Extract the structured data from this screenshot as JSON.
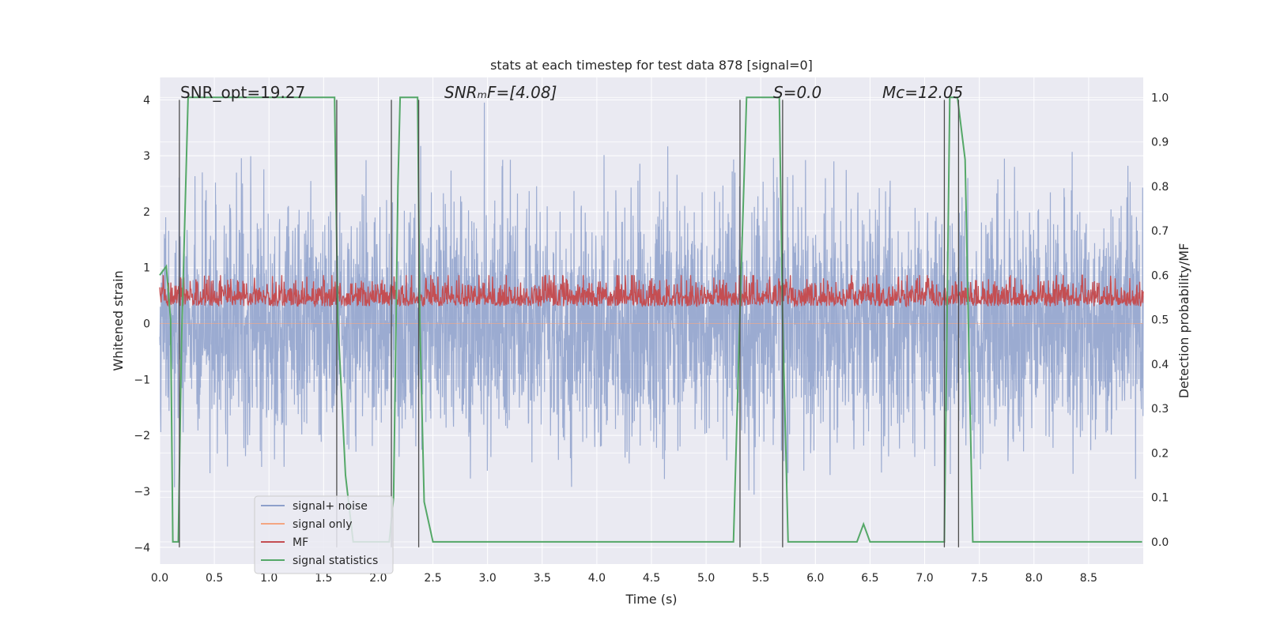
{
  "chart_data": {
    "type": "line",
    "title": "stats at each timestep for test data 878 [signal=0]",
    "xlabel": "Time (s)",
    "ylabel_left": "Whitened strain",
    "ylabel_right": "Detection probability/MF",
    "xlim": [
      0.0,
      9.0
    ],
    "ylim_left": [
      -4.3,
      4.4
    ],
    "ylim_right": [
      -0.05,
      1.045
    ],
    "x_ticks": [
      "0.0",
      "0.5",
      "1.0",
      "1.5",
      "2.0",
      "2.5",
      "3.0",
      "3.5",
      "4.0",
      "4.5",
      "5.0",
      "5.5",
      "6.0",
      "6.5",
      "7.0",
      "7.5",
      "8.0",
      "8.5"
    ],
    "y_ticks_left": [
      "4",
      "3",
      "2",
      "1",
      "0",
      "−1",
      "−2",
      "−3",
      "−4"
    ],
    "y_ticks_right": [
      "1.0",
      "0.9",
      "0.8",
      "0.7",
      "0.6",
      "0.5",
      "0.4",
      "0.3",
      "0.2",
      "0.1",
      "0.0"
    ],
    "grid": true,
    "legend_position": "lower-left",
    "annotations": {
      "snr_opt": "SNR_opt=19.27",
      "snr_mf": "SNRₘF=[4.08]",
      "s": "S=0.0",
      "mc": "Mᴄ=12.05"
    },
    "series": [
      {
        "name": "signal+ noise",
        "color": "#8da0cb",
        "note": "dense noise trace, amplitude mostly within -2.5..2.5, peaks near ±4"
      },
      {
        "name": "signal only",
        "color": "#f4a582",
        "values_desc": "zero throughout (no signal)"
      },
      {
        "name": "MF",
        "color": "#c44e52",
        "note": "matched filter output oscillating 0.5..0.6 on right axis"
      },
      {
        "name": "signal statistics",
        "color": "#55a868",
        "x": [
          0.0,
          0.06,
          0.1,
          0.12,
          0.17,
          0.2,
          0.26,
          0.3,
          1.0,
          1.6,
          1.63,
          1.7,
          1.77,
          2.0,
          2.1,
          2.14,
          2.18,
          2.2,
          2.3,
          2.36,
          2.38,
          2.42,
          2.5,
          3.0,
          4.0,
          5.0,
          5.25,
          5.32,
          5.37,
          5.5,
          5.67,
          5.7,
          5.75,
          6.0,
          6.38,
          6.44,
          6.5,
          7.0,
          7.18,
          7.23,
          7.3,
          7.37,
          7.44,
          8.0,
          8.99
        ],
        "values": [
          0.6,
          0.62,
          0.5,
          0.0,
          0.0,
          0.45,
          1.0,
          1.0,
          1.0,
          1.0,
          0.5,
          0.15,
          0.0,
          0.0,
          0.0,
          0.1,
          0.8,
          1.0,
          1.0,
          1.0,
          0.5,
          0.09,
          0.0,
          0.0,
          0.0,
          0.0,
          0.0,
          0.6,
          1.0,
          1.0,
          1.0,
          0.5,
          0.0,
          0.0,
          0.0,
          0.04,
          0.0,
          0.0,
          0.0,
          1.0,
          1.0,
          0.86,
          0.0,
          0.0,
          0.0
        ]
      }
    ],
    "event_lines_x": [
      0.18,
      1.62,
      2.12,
      2.37,
      5.31,
      5.7,
      7.18,
      7.31
    ]
  },
  "legend": {
    "items": [
      {
        "label": "signal+ noise",
        "color": "#8da0cb"
      },
      {
        "label": "signal only",
        "color": "#f4a582"
      },
      {
        "label": "MF",
        "color": "#c44e52"
      },
      {
        "label": "signal statistics",
        "color": "#55a868"
      }
    ]
  },
  "colors": {
    "plot_bg": "#eaeaf2",
    "grid": "#ffffff",
    "noise": "#8da0cb",
    "mf": "#c44e52",
    "stats": "#55a868",
    "event_line": "#4d4d4d"
  }
}
